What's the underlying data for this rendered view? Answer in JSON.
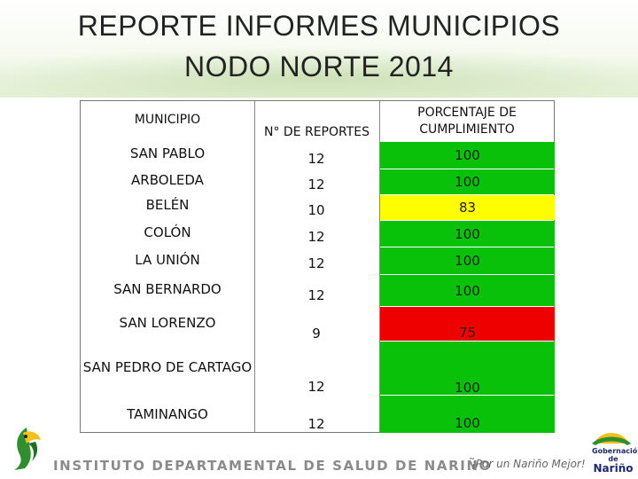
{
  "title": {
    "line1": "REPORTE INFORMES MUNICIPIOS",
    "line2": "NODO NORTE 2014"
  },
  "table": {
    "headers": {
      "municipio": "MUNICIPIO",
      "reportes": "N° DE REPORTES",
      "porcentaje_line1": "PORCENTAJE DE",
      "porcentaje_line2": "CUMPLIMIENTO"
    },
    "rows": [
      {
        "municipio": "SAN PABLO",
        "reportes": "12",
        "porcentaje": "100",
        "status_color": "#09c109"
      },
      {
        "municipio": "ARBOLEDA",
        "reportes": "12",
        "porcentaje": "100",
        "status_color": "#09c109"
      },
      {
        "municipio": "BELÉN",
        "reportes": "10",
        "porcentaje": "83",
        "status_color": "#fefe00"
      },
      {
        "municipio": "COLÓN",
        "reportes": "12",
        "porcentaje": "100",
        "status_color": "#09c109"
      },
      {
        "municipio": "LA UNIÓN",
        "reportes": "12",
        "porcentaje": "100",
        "status_color": "#09c109"
      },
      {
        "municipio": "SAN BERNARDO",
        "reportes": "12",
        "porcentaje": "100",
        "status_color": "#09c109"
      },
      {
        "municipio": "SAN LORENZO",
        "reportes": "9",
        "porcentaje": "75",
        "status_color": "#ef0000"
      },
      {
        "municipio": "SAN PEDRO DE CARTAGO",
        "reportes": "12",
        "porcentaje": "100",
        "status_color": "#09c109"
      },
      {
        "municipio": "TAMINANGO",
        "reportes": "12",
        "porcentaje": "100",
        "status_color": "#09c109"
      }
    ]
  },
  "footer": {
    "institution": "INSTITUTO DEPARTAMENTAL DE SALUD DE NARIÑO",
    "slogan": "¡Por un Nariño Mejor!",
    "logo_right_line1": "Gobernación de",
    "logo_right_line2": "Nariño"
  },
  "icons": {
    "left_logo": "bird-logo-icon",
    "right_logo": "gobernacion-narino-logo-icon"
  }
}
